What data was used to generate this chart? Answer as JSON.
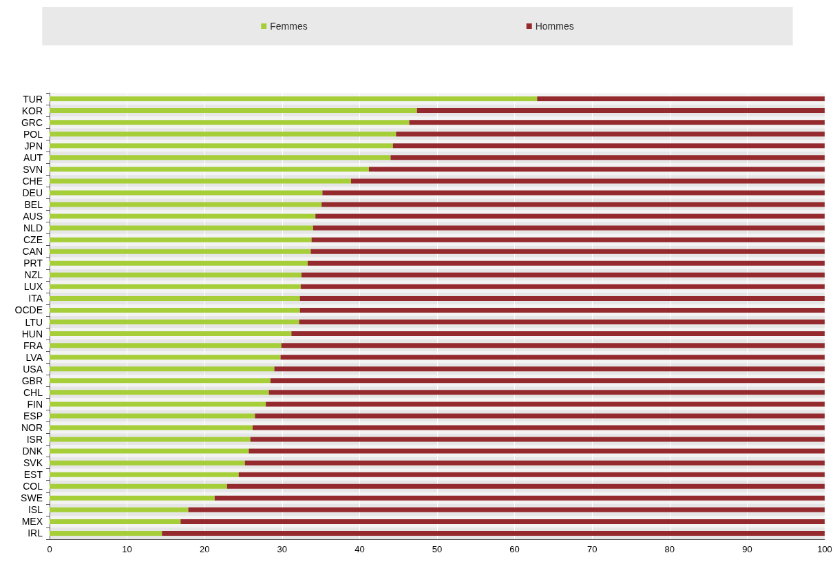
{
  "chart_data": {
    "type": "bar",
    "orientation": "horizontal",
    "stacked": true,
    "categories": [
      "TUR",
      "KOR",
      "GRC",
      "POL",
      "JPN",
      "AUT",
      "SVN",
      "CHE",
      "DEU",
      "BEL",
      "AUS",
      "NLD",
      "CZE",
      "CAN",
      "PRT",
      "NZL",
      "LUX",
      "ITA",
      "OCDE",
      "LTU",
      "HUN",
      "FRA",
      "LVA",
      "USA",
      "GBR",
      "CHL",
      "FIN",
      "ESP",
      "NOR",
      "ISR",
      "DNK",
      "SVK",
      "EST",
      "COL",
      "SWE",
      "ISL",
      "MEX",
      "IRL"
    ],
    "series": [
      {
        "name": "Femmes",
        "color": "#a6ce39",
        "values": [
          62.9,
          47.4,
          46.4,
          44.7,
          44.3,
          44.0,
          41.2,
          38.9,
          35.2,
          35.1,
          34.3,
          34.0,
          33.8,
          33.7,
          33.3,
          32.5,
          32.4,
          32.3,
          32.3,
          32.2,
          31.2,
          29.9,
          29.8,
          29.0,
          28.5,
          28.3,
          27.9,
          26.5,
          26.2,
          25.9,
          25.7,
          25.2,
          24.4,
          22.9,
          21.3,
          17.9,
          16.9,
          14.5
        ]
      },
      {
        "name": "Hommes",
        "color": "#952a2e",
        "values": [
          37.1,
          52.6,
          53.6,
          55.3,
          55.7,
          56.0,
          58.8,
          61.1,
          64.8,
          64.9,
          65.7,
          66.0,
          66.2,
          66.3,
          66.7,
          67.5,
          67.6,
          67.7,
          67.7,
          67.8,
          68.8,
          70.1,
          70.2,
          71.0,
          71.5,
          71.7,
          72.1,
          73.5,
          73.8,
          74.1,
          74.3,
          74.8,
          75.6,
          77.1,
          78.7,
          82.1,
          83.1,
          85.5
        ]
      }
    ],
    "xlim": [
      0,
      100
    ],
    "xticks": [
      0,
      10,
      20,
      30,
      40,
      50,
      60,
      70,
      80,
      90,
      100
    ],
    "grid": "x",
    "legend": "top"
  }
}
